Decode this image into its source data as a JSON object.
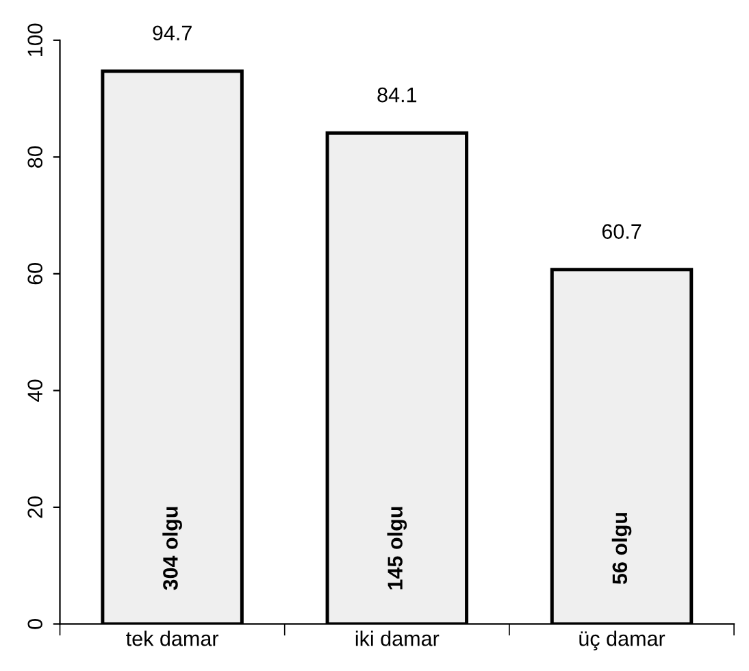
{
  "chart_data": {
    "type": "bar",
    "categories": [
      "tek damar",
      "iki damar",
      "üç damar"
    ],
    "values": [
      94.7,
      84.1,
      60.7
    ],
    "color": "#efefef",
    "data_labels": true,
    "ylim": [
      0,
      100
    ],
    "yticks": [
      0,
      20,
      40,
      60,
      80,
      100
    ],
    "grid": false,
    "legend": false,
    "annotations": [
      "304 olgu",
      "145 olgu",
      "56 olgu"
    ]
  }
}
